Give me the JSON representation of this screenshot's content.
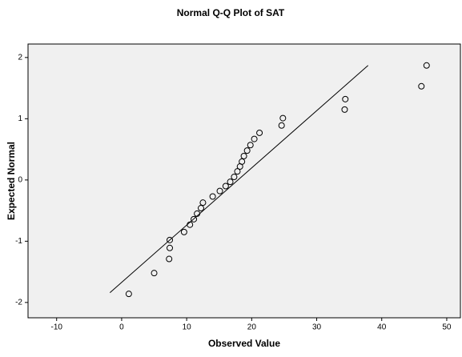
{
  "chart_data": {
    "type": "scatter",
    "title": "Normal Q-Q Plot of SAT",
    "xlabel": "Observed Value",
    "ylabel": "Expected Normal",
    "x": [
      1.1,
      5.0,
      7.3,
      7.4,
      7.4,
      9.6,
      10.5,
      11.1,
      11.6,
      12.2,
      12.5,
      14.0,
      15.1,
      16.0,
      16.7,
      17.3,
      17.8,
      18.2,
      18.5,
      18.8,
      19.3,
      19.8,
      20.4,
      21.2,
      24.6,
      24.8,
      34.3,
      34.4,
      46.1,
      46.9
    ],
    "values": [
      -1.86,
      -1.52,
      -1.29,
      -1.11,
      -0.98,
      -0.85,
      -0.73,
      -0.64,
      -0.55,
      -0.46,
      -0.37,
      -0.27,
      -0.18,
      -0.1,
      -0.03,
      0.05,
      0.14,
      0.22,
      0.3,
      0.39,
      0.48,
      0.57,
      0.67,
      0.77,
      0.89,
      1.01,
      1.15,
      1.32,
      1.53,
      1.87
    ],
    "reference_line": {
      "x": [
        -1.8,
        37.9
      ],
      "y": [
        -1.84,
        1.87
      ]
    },
    "xlim": [
      -14.4,
      52.1
    ],
    "xticks": [
      -10,
      0,
      10,
      20,
      30,
      40,
      50
    ],
    "ylim": [
      -2.25,
      2.22
    ],
    "yticks": [
      -2,
      -1,
      0,
      1,
      2
    ],
    "color": "#000000",
    "background": "#f0f0f0"
  }
}
